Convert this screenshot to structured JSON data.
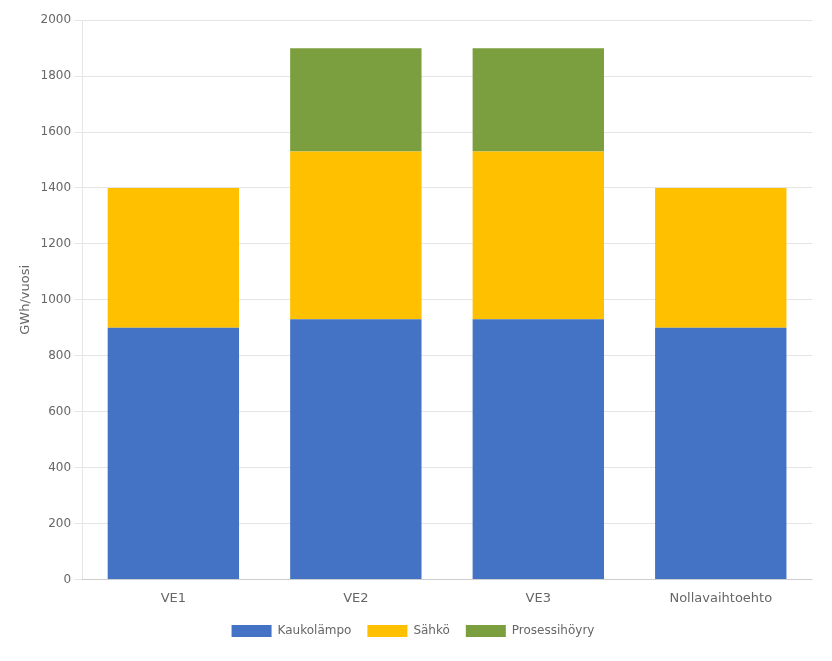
{
  "chart_data": {
    "type": "bar",
    "stacked": true,
    "categories": [
      "VE1",
      "VE2",
      "VE3",
      "Nollavaihtoehto"
    ],
    "series": [
      {
        "name": "Kaukolämpo",
        "color": "#4472C4",
        "values": [
          900,
          930,
          930,
          900
        ]
      },
      {
        "name": "Sähkö",
        "color": "#FFC000",
        "values": [
          500,
          600,
          600,
          500
        ]
      },
      {
        "name": "Prosessihöyry",
        "color": "#7B9E3E",
        "values": [
          0,
          370,
          370,
          0
        ]
      }
    ],
    "ylabel": "GWh/vuosi",
    "ylim": [
      0,
      2000
    ],
    "yticks": [
      0,
      200,
      400,
      600,
      800,
      1000,
      1200,
      1400,
      1600,
      1800,
      2000
    ],
    "grid": true,
    "legend": "bottom"
  }
}
